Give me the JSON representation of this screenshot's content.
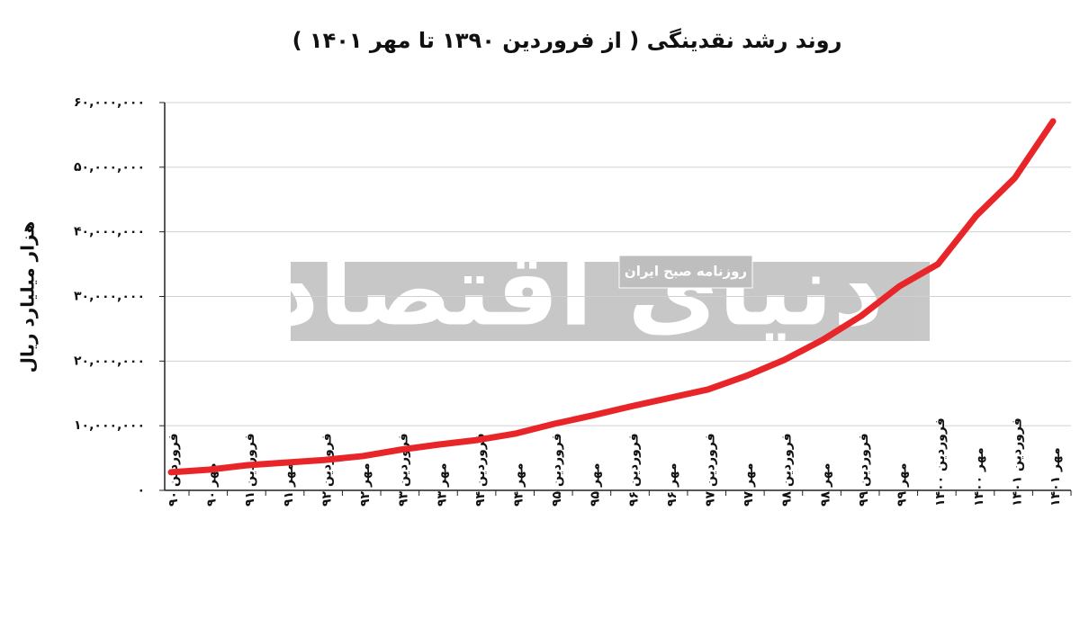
{
  "chart_data": {
    "type": "line",
    "title": "روند رشد نقدینگی ( از فروردین ۱۳۹۰ تا مهر ۱۴۰۱ )",
    "y_label": "هزار میلیارد ریال",
    "categories": [
      "فروردین ۹۰",
      "مهر ۹۰",
      "فروردین ۹۱",
      "مهر ۹۱",
      "فروردین ۹۲",
      "مهر ۹۲",
      "فروردین ۹۳",
      "مهر ۹۳",
      "فروردین ۹۴",
      "مهر ۹۴",
      "فروردین ۹۵",
      "مهر ۹۵",
      "فروردین ۹۶",
      "مهر ۹۶",
      "فروردین ۹۷",
      "مهر ۹۷",
      "فروردین ۹۸",
      "مهر ۹۸",
      "فروردین ۹۹",
      "مهر ۹۹",
      "فروردین ۱۴۰۰",
      "مهر ۱۴۰۰",
      "فروردین ۱۴۰۱",
      "مهر ۱۴۰۱"
    ],
    "values": [
      2800000,
      3200000,
      3900000,
      4300000,
      4700000,
      5300000,
      6300000,
      7100000,
      7800000,
      8800000,
      10300000,
      11600000,
      13000000,
      14300000,
      15600000,
      17700000,
      20200000,
      23300000,
      27000000,
      31600000,
      35000000,
      42500000,
      48300000,
      57100000
    ],
    "color": "#e8262a",
    "ylim": [
      0,
      60000000
    ],
    "yticks": [
      {
        "value": 0,
        "label": "۰"
      },
      {
        "value": 10000000,
        "label": "۱۰,۰۰۰,۰۰۰"
      },
      {
        "value": 20000000,
        "label": "۲۰,۰۰۰,۰۰۰"
      },
      {
        "value": 30000000,
        "label": "۳۰,۰۰۰,۰۰۰"
      },
      {
        "value": 40000000,
        "label": "۴۰,۰۰۰,۰۰۰"
      },
      {
        "value": 50000000,
        "label": "۵۰,۰۰۰,۰۰۰"
      },
      {
        "value": 60000000,
        "label": "۶۰,۰۰۰,۰۰۰"
      }
    ],
    "grid": true
  },
  "watermark": {
    "title": "دنیای اقتصاد",
    "subtitle": "روزنامه صبح ایران"
  }
}
